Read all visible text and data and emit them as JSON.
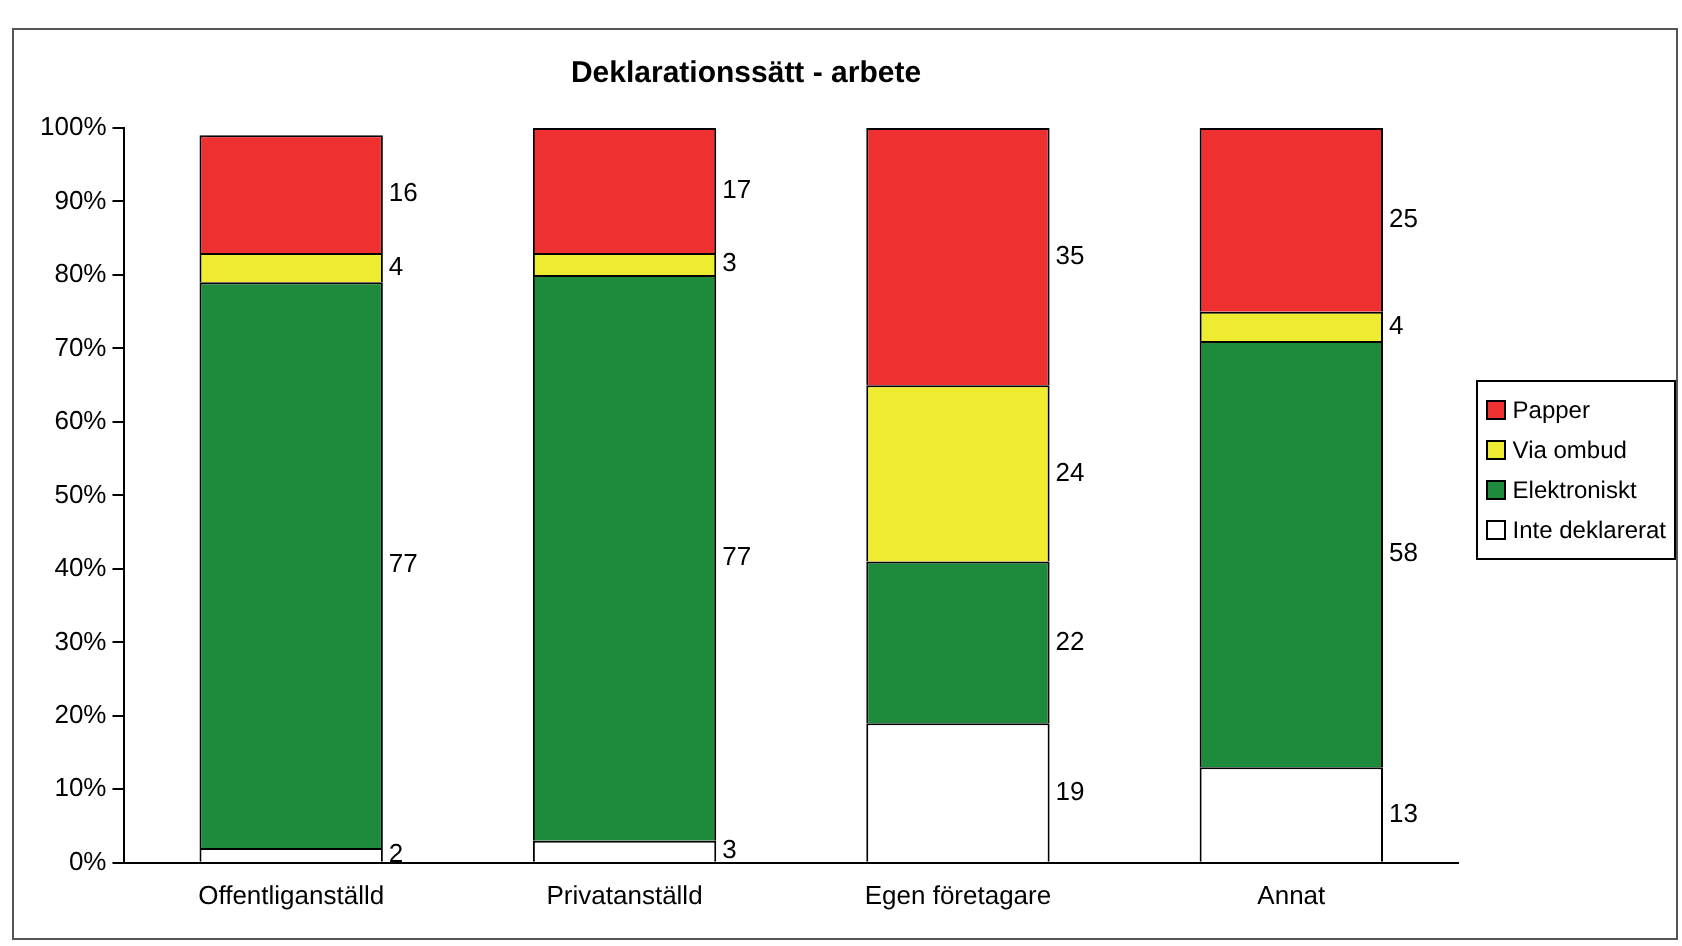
{
  "chart_data": {
    "type": "bar",
    "title": "Deklarationssätt - arbete",
    "categories": [
      "Offentliganställd",
      "Privatanställd",
      "Egen företagare",
      "Annat"
    ],
    "stacked": true,
    "series": [
      {
        "name": "Inte deklarerat",
        "color": "#ffffff",
        "values": [
          2,
          3,
          19,
          13
        ]
      },
      {
        "name": "Elektroniskt",
        "color": "#1e8a3c",
        "values": [
          77,
          77,
          22,
          58
        ]
      },
      {
        "name": "Via ombud",
        "color": "#eeec30",
        "values": [
          4,
          3,
          24,
          4
        ]
      },
      {
        "name": "Papper",
        "color": "#ee3030",
        "values": [
          16,
          17,
          35,
          25
        ]
      }
    ],
    "ylim": [
      0,
      100
    ],
    "yticks": [
      {
        "value": 0,
        "label": "0%"
      },
      {
        "value": 10,
        "label": "10%"
      },
      {
        "value": 20,
        "label": "20%"
      },
      {
        "value": 30,
        "label": "30%"
      },
      {
        "value": 40,
        "label": "40%"
      },
      {
        "value": 50,
        "label": "50%"
      },
      {
        "value": 60,
        "label": "60%"
      },
      {
        "value": 70,
        "label": "70%"
      },
      {
        "value": 80,
        "label": "80%"
      },
      {
        "value": 90,
        "label": "90%"
      },
      {
        "value": 100,
        "label": "100%"
      }
    ],
    "grid": false,
    "legend": "right",
    "data_labels": true
  }
}
